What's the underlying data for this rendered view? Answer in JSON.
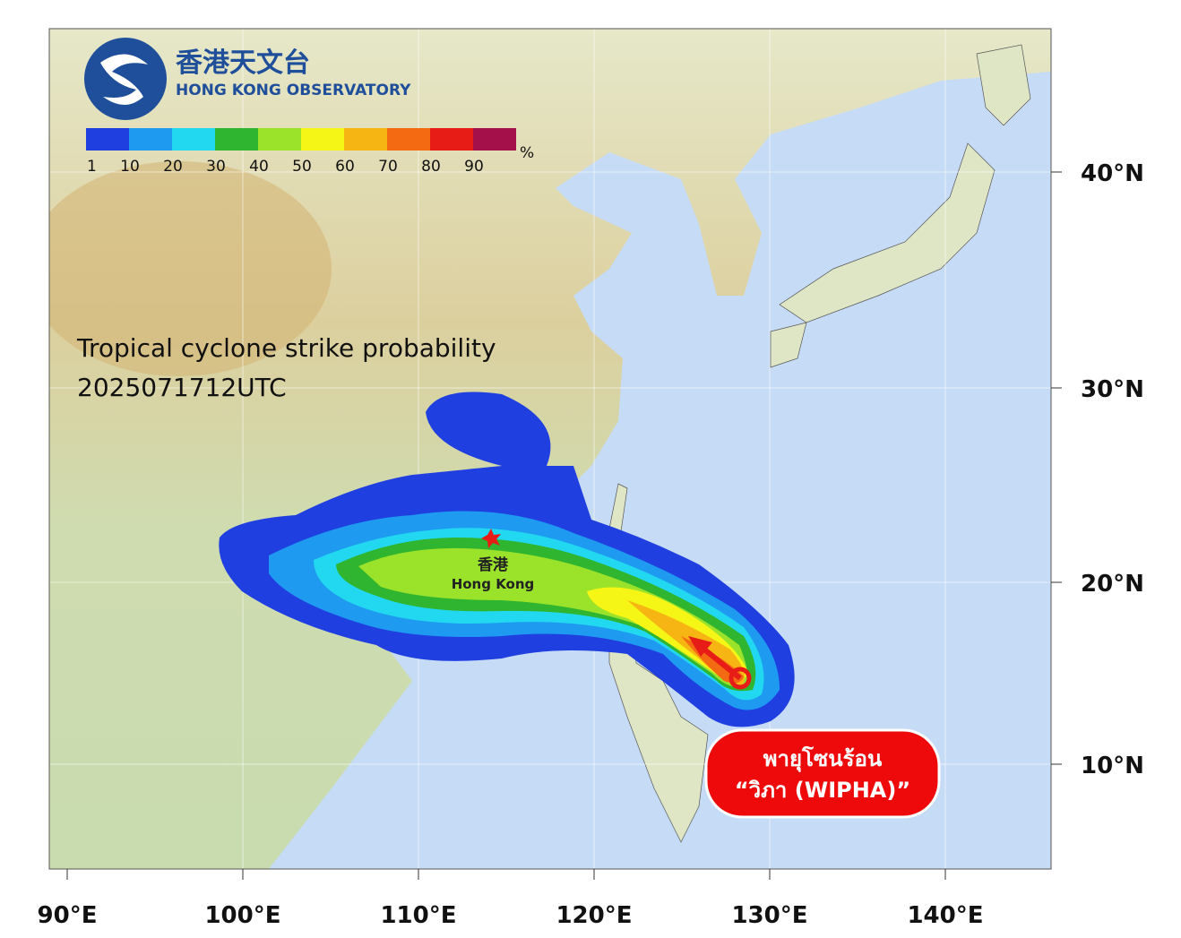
{
  "header": {
    "logo_chinese": "香港天文台",
    "logo_english": "HONG KONG OBSERVATORY"
  },
  "legend": {
    "labels": [
      1,
      10,
      20,
      30,
      40,
      50,
      60,
      70,
      80,
      90
    ],
    "unit": "%",
    "colors": [
      "#1f3fe0",
      "#1e9bf0",
      "#22d8f0",
      "#2fb52f",
      "#9be22a",
      "#f5f516",
      "#f7b514",
      "#f46a12",
      "#e81c16",
      "#a3104a"
    ]
  },
  "title": {
    "line1": "Tropical cyclone strike probability",
    "line2": "2025071712UTC"
  },
  "place": {
    "chinese": "香港",
    "english": "Hong Kong"
  },
  "badge": {
    "line1": "พายุโซนร้อน",
    "line2": "“วิภา (WIPHA)”"
  },
  "axes": {
    "lat_labels": [
      "40°N",
      "30°N",
      "20°N",
      "10°N"
    ],
    "lon_labels": [
      "90°E",
      "100°E",
      "110°E",
      "120°E",
      "130°E",
      "140°E"
    ]
  }
}
